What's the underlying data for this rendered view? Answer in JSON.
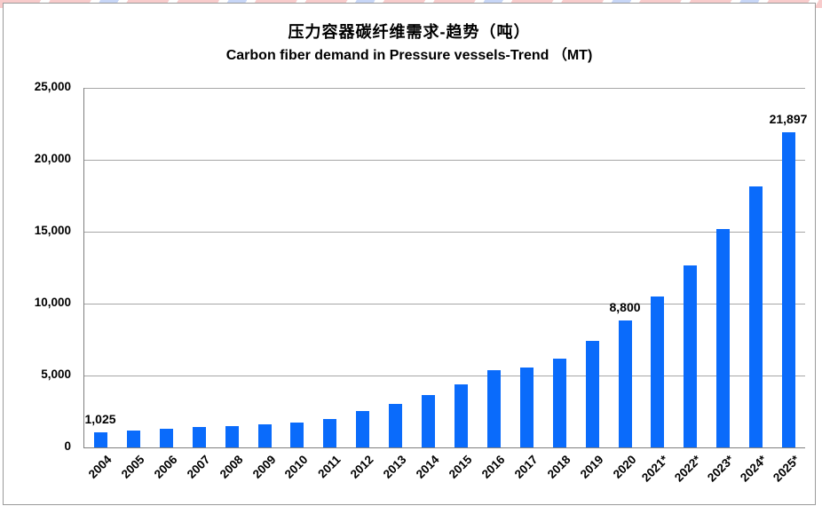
{
  "chart": {
    "title_zh": "压力容器碳纤维需求-趋势（吨）",
    "title_en": "Carbon fiber demand in Pressure vessels-Trend （MT)"
  },
  "chart_data": {
    "type": "bar",
    "title": "压力容器碳纤维需求-趋势（吨）",
    "subtitle": "Carbon fiber demand in Pressure vessels-Trend （MT)",
    "categories": [
      "2004",
      "2005",
      "2006",
      "2007",
      "2008",
      "2009",
      "2010",
      "2011",
      "2012",
      "2013",
      "2014",
      "2015",
      "2016",
      "2017",
      "2018",
      "2019",
      "2020",
      "2021*",
      "2022*",
      "2023*",
      "2024*",
      "2025*"
    ],
    "values": [
      1025,
      1150,
      1270,
      1390,
      1480,
      1600,
      1740,
      1950,
      2520,
      3020,
      3650,
      4360,
      5350,
      5580,
      6180,
      7430,
      8800,
      10500,
      12670,
      15160,
      18150,
      21897
    ],
    "xlabel": "",
    "ylabel": "",
    "ylim": [
      0,
      25000
    ],
    "ytick_interval": 5000,
    "ytick_labels": [
      "0",
      "5,000",
      "10,000",
      "15,000",
      "20,000",
      "25,000"
    ],
    "grid": true,
    "legend": false,
    "data_labels": [
      {
        "category": "2004",
        "text": "1,025"
      },
      {
        "category": "2020",
        "text": "8,800"
      },
      {
        "category": "2025*",
        "text": "21,897"
      }
    ]
  },
  "colors": {
    "bar": "#0a6bfb",
    "gridline": "#a6a6a6",
    "axis": "#7f7f7f",
    "chart_border": "#9a9a9a",
    "banner_pink": "#f8cbcb",
    "banner_blue": "#c7d6f7"
  }
}
